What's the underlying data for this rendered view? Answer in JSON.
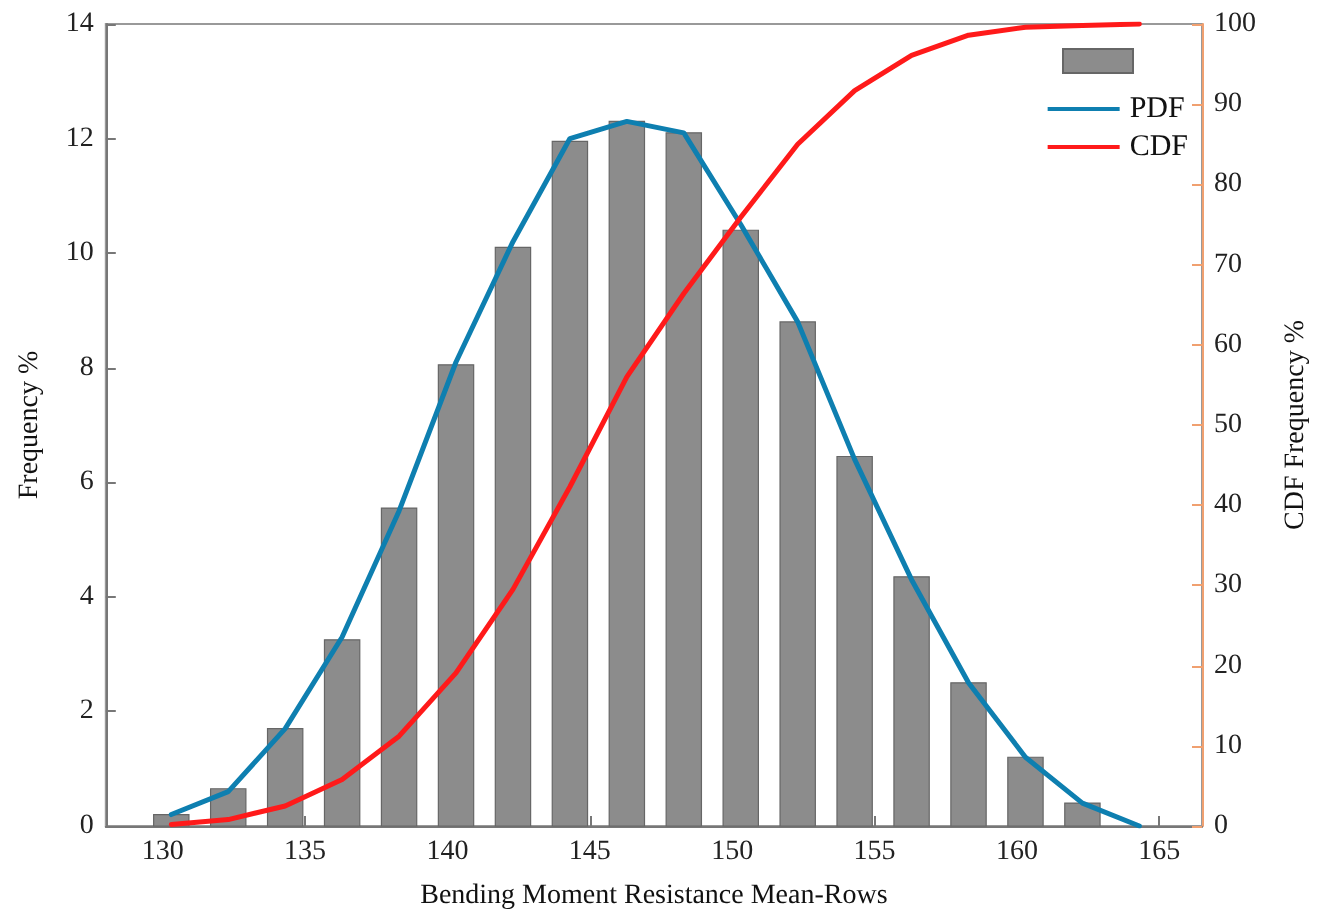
{
  "chart_data": {
    "type": "histogram",
    "xlabel": "Bending Moment Resistance Mean-Rows",
    "ylabel": "Frequency %",
    "y2label": "CDF Frequency %",
    "xlim": [
      128,
      166.5
    ],
    "xticks": [
      130,
      135,
      140,
      145,
      150,
      155,
      160,
      165
    ],
    "ylim": [
      0,
      14
    ],
    "yticks": [
      0,
      2,
      4,
      6,
      8,
      10,
      12,
      14
    ],
    "y2lim": [
      0,
      100
    ],
    "y2ticks": [
      0,
      10,
      20,
      30,
      40,
      50,
      60,
      70,
      80,
      90,
      100
    ],
    "grid": false,
    "legend": "top right",
    "marker": "none",
    "series": [
      {
        "color": "#8c8c8c",
        "bins": [
          129.3,
          131.3,
          133.3,
          135.3,
          137.3,
          139.3,
          141.3,
          143.3,
          145.3,
          147.3,
          149.3,
          151.3,
          153.3,
          155.3,
          157.3,
          159.3,
          161.3,
          163.3
        ],
        "values": [
          0.2,
          0.65,
          1.7,
          3.25,
          5.55,
          8.05,
          10.1,
          11.95,
          12.3,
          12.1,
          10.4,
          8.8,
          6.45,
          4.35,
          2.5,
          1.2,
          0.4
        ]
      },
      {
        "type": "line",
        "name": "PDF",
        "color": "#0e7fb0",
        "x": [
          130.3,
          132.3,
          134.3,
          136.3,
          138.3,
          140.3,
          142.3,
          144.3,
          146.3,
          148.3,
          150.3,
          152.3,
          154.3,
          156.3,
          158.3,
          160.3,
          162.3,
          164.3
        ],
        "values": [
          0.2,
          0.6,
          1.7,
          3.3,
          5.5,
          8.1,
          10.2,
          12.0,
          12.3,
          12.1,
          10.5,
          8.8,
          6.4,
          4.3,
          2.5,
          1.2,
          0.4,
          0
        ]
      },
      {
        "type": "line",
        "name": "CDF",
        "color": "#ff1a1a",
        "axis": "y2",
        "x": [
          130.3,
          132.3,
          134.3,
          136.3,
          138.3,
          140.3,
          142.3,
          144.3,
          146.3,
          148.3,
          150.3,
          152.3,
          154.3,
          156.3,
          158.3,
          160.3,
          162.3,
          164.3
        ],
        "values": [
          0.2,
          0.8,
          2.5,
          5.8,
          11.2,
          19.1,
          29.5,
          42.3,
          56,
          66.4,
          75.9,
          85,
          91.7,
          96.1,
          98.6,
          99.6,
          99.8,
          100
        ]
      }
    ]
  }
}
